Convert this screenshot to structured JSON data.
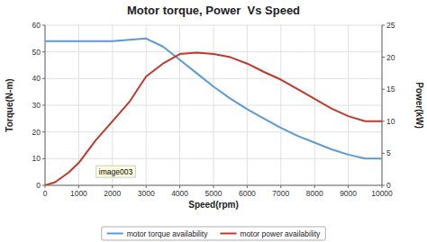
{
  "chart_data": {
    "type": "line",
    "title": "Motor torque, Power  Vs Speed",
    "xlabel": "Speed(rpm)",
    "ylabel": "Torque(N-m)",
    "y2label": "Power(kW)",
    "xlim": [
      0,
      10000
    ],
    "ylim": [
      0,
      60
    ],
    "y2lim": [
      0,
      25
    ],
    "xticks": [
      0,
      1000,
      2000,
      3000,
      4000,
      5000,
      6000,
      7000,
      8000,
      9000,
      10000
    ],
    "yticks": [
      0,
      10,
      20,
      30,
      40,
      50,
      60
    ],
    "y2ticks": [
      0,
      5,
      10,
      15,
      20,
      25
    ],
    "grid": true,
    "legend": "bottom",
    "annotations": [
      "image003"
    ],
    "series": [
      {
        "name": "motor torque availability",
        "color": "#5B9BD5",
        "x": [
          0,
          500,
          1000,
          1500,
          2000,
          2500,
          3000,
          3500,
          4000,
          4500,
          5000,
          5500,
          6000,
          6500,
          7000,
          7500,
          8000,
          8500,
          9000,
          9500,
          10000
        ],
        "values": [
          54,
          54,
          54,
          54,
          54,
          54.5,
          55,
          52,
          47,
          42,
          37,
          32.5,
          28.5,
          25,
          21.5,
          18.5,
          16,
          13.5,
          11.5,
          10,
          10
        ]
      },
      {
        "name": "motor power availability",
        "color": "#C0392B",
        "axis": "y2",
        "x": [
          0,
          300,
          700,
          1000,
          1500,
          2000,
          2500,
          3000,
          3500,
          4000,
          4500,
          5000,
          5500,
          6000,
          6500,
          7000,
          7500,
          8000,
          8500,
          9000,
          9500,
          10000
        ],
        "values": [
          0,
          0.5,
          2,
          3.5,
          7,
          10,
          13,
          17,
          19,
          20.5,
          20.7,
          20.5,
          20,
          19,
          17.7,
          16.5,
          15,
          13.5,
          12,
          10.8,
          10,
          10
        ]
      }
    ]
  }
}
